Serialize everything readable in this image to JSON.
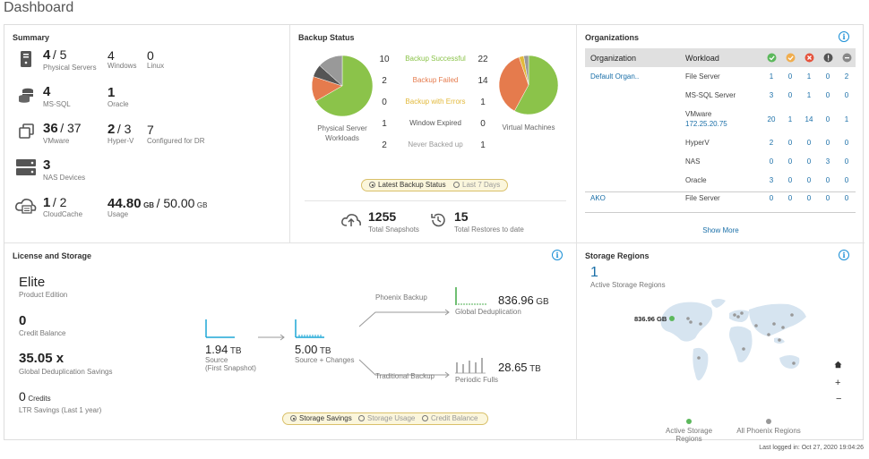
{
  "page": {
    "title": "Dashboard",
    "last_logged": "Last logged in: Oct 27, 2020 19:04:26"
  },
  "summary": {
    "title": "Summary",
    "physical": {
      "value": "4",
      "total": "/ 5",
      "label": "Physical Servers"
    },
    "windows": {
      "value": "4",
      "label": "Windows"
    },
    "linux": {
      "value": "0",
      "label": "Linux"
    },
    "mssql": {
      "value": "4",
      "label": "MS-SQL"
    },
    "oracle": {
      "value": "1",
      "label": "Oracle"
    },
    "vmware": {
      "value": "36",
      "total": "/ 37",
      "label": "VMware"
    },
    "hyperv": {
      "value": "2",
      "total": "/ 3",
      "label": "Hyper-V"
    },
    "dr": {
      "value": "7",
      "label": "Configured for DR"
    },
    "nas": {
      "value": "3",
      "label": "NAS Devices"
    },
    "cloudcache": {
      "value": "1",
      "total": "/ 2",
      "label": "CloudCache"
    },
    "usage": {
      "value": "44.80",
      "unit": "GB",
      "total": "/ 50.00",
      "total_unit": "GB",
      "label": "Usage"
    }
  },
  "backup": {
    "title": "Backup Status",
    "rows": [
      {
        "label": "Backup Successful",
        "left": "10",
        "right": "22",
        "color": "#8bc34a"
      },
      {
        "label": "Backup Failed",
        "left": "2",
        "right": "14",
        "color": "#e57b4d"
      },
      {
        "label": "Backup with Errors",
        "left": "0",
        "right": "1",
        "color": "#e2b93b"
      },
      {
        "label": "Window Expired",
        "left": "1",
        "right": "0",
        "color": "#555555"
      },
      {
        "label": "Never Backed up",
        "left": "2",
        "right": "1",
        "color": "#999999"
      }
    ],
    "left_label": "Physical Server Workloads",
    "right_label": "Virtual Machines",
    "pie_left": [
      10,
      2,
      0,
      1,
      2
    ],
    "pie_right": [
      22,
      14,
      1,
      0,
      1
    ],
    "toggle": [
      "Latest Backup Status",
      "Last 7 Days"
    ],
    "snapshots": {
      "value": "1255",
      "label": "Total Snapshots"
    },
    "restores": {
      "value": "15",
      "label": "Total Restores to date"
    }
  },
  "orgs": {
    "title": "Organizations",
    "headers": {
      "org": "Organization",
      "workload": "Workload"
    },
    "rows": [
      {
        "org": "Default Organ..",
        "workload": "File Server",
        "c": [
          "1",
          "0",
          "1",
          "0",
          "2"
        ]
      },
      {
        "org": "",
        "workload": "MS-SQL Server",
        "c": [
          "3",
          "0",
          "1",
          "0",
          "0"
        ]
      },
      {
        "org": "",
        "workload": "VMware",
        "sub": "172.25.20.75",
        "c": [
          "20",
          "1",
          "14",
          "0",
          "1"
        ]
      },
      {
        "org": "",
        "workload": "HyperV",
        "c": [
          "2",
          "0",
          "0",
          "0",
          "0"
        ]
      },
      {
        "org": "",
        "workload": "NAS",
        "c": [
          "0",
          "0",
          "0",
          "3",
          "0"
        ]
      },
      {
        "org": "",
        "workload": "Oracle",
        "c": [
          "3",
          "0",
          "0",
          "0",
          "0"
        ]
      },
      {
        "org": "AKO",
        "workload": "File Server",
        "c": [
          "0",
          "0",
          "0",
          "0",
          "0"
        ]
      }
    ],
    "show_more": "Show More"
  },
  "license": {
    "title": "License and Storage",
    "edition": {
      "value": "Elite",
      "label": "Product Edition"
    },
    "credit": {
      "value": "0",
      "label": "Credit Balance"
    },
    "dedup": {
      "value": "35.05 x",
      "label": "Global Deduplication Savings"
    },
    "ltr": {
      "value": "0",
      "unit": "Credits",
      "label": "LTR Savings (Last 1 year)"
    },
    "source": {
      "value": "1.94",
      "unit": "TB",
      "label": "Source",
      "label2": "(First Snapshot)"
    },
    "changes": {
      "value": "5.00",
      "unit": "TB",
      "label": "Source + Changes"
    },
    "phoenix_backup": "Phoenix Backup",
    "traditional_backup": "Traditional Backup",
    "global_dedup": {
      "value": "836.96",
      "unit": "GB",
      "label": "Global Deduplication"
    },
    "periodic": {
      "value": "28.65",
      "unit": "TB",
      "label": "Periodic Fulls"
    },
    "toggle": [
      "Storage Savings",
      "Storage Usage",
      "Credit Balance"
    ]
  },
  "regions": {
    "title": "Storage Regions",
    "count": "1",
    "label": "Active Storage Regions",
    "map_value": "836.96 GB",
    "legend": [
      "Active Storage Regions",
      "All Phoenix Regions"
    ],
    "colors": {
      "active": "#5cb85c",
      "all": "#999999"
    }
  }
}
